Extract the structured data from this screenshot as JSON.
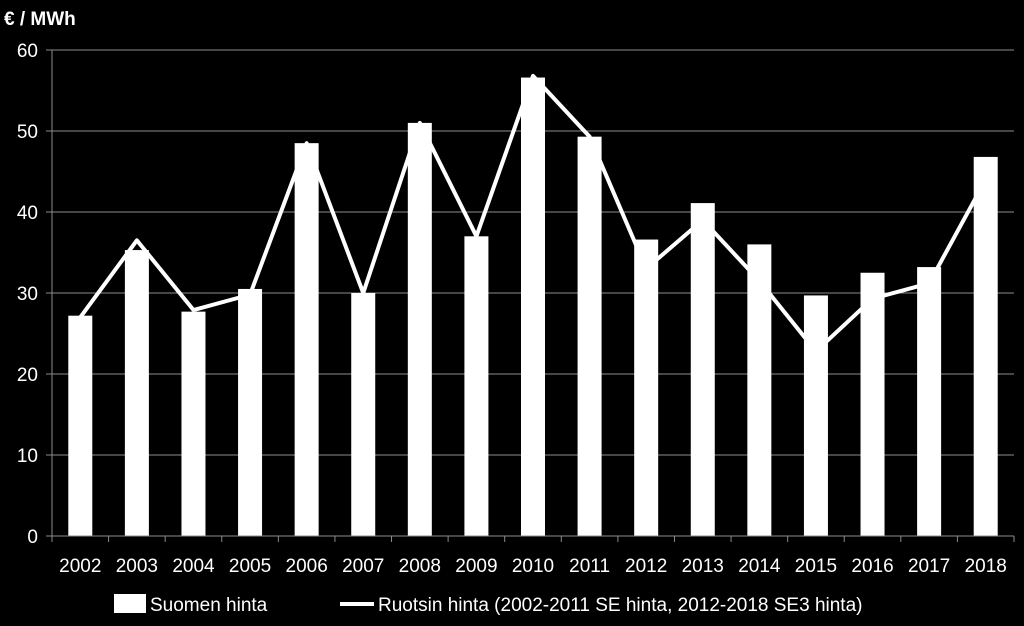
{
  "chart_data": {
    "type": "bar",
    "ylabel": "€ / MWh",
    "ylim": [
      0,
      60
    ],
    "yticks": [
      0,
      10,
      20,
      30,
      40,
      50,
      60
    ],
    "grid": true,
    "legend_position": "bottom",
    "categories": [
      "2002",
      "2003",
      "2004",
      "2005",
      "2006",
      "2007",
      "2008",
      "2009",
      "2010",
      "2011",
      "2012",
      "2013",
      "2014",
      "2015",
      "2016",
      "2017",
      "2018"
    ],
    "series": [
      {
        "name": "Suomen hinta",
        "type": "bar",
        "color": "#ffffff",
        "values": [
          27.2,
          35.3,
          27.7,
          30.5,
          48.5,
          30.0,
          51.0,
          37.0,
          56.6,
          49.3,
          36.6,
          41.1,
          36.0,
          29.7,
          32.5,
          33.2,
          46.8
        ]
      },
      {
        "name": "Ruotsin hinta (2002-2011 SE hinta, 2012-2018 SE3 hinta)",
        "type": "line",
        "color": "#ffffff",
        "values": [
          27.0,
          36.5,
          27.9,
          29.8,
          48.5,
          30.0,
          51.0,
          37.0,
          56.8,
          49.3,
          33.0,
          39.0,
          31.5,
          22.8,
          29.3,
          31.2,
          44.0
        ]
      }
    ]
  }
}
